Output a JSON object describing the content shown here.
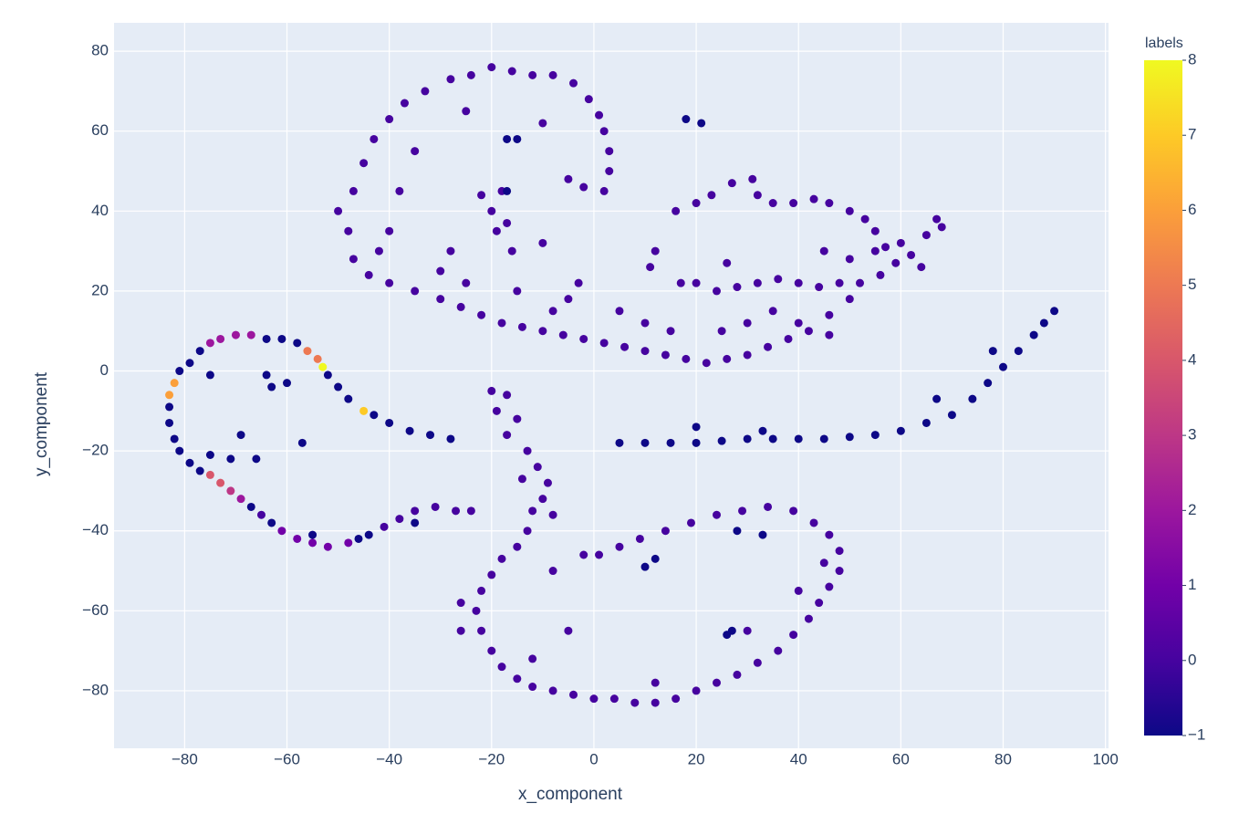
{
  "chart_data": {
    "type": "scatter",
    "xlabel": "x_component",
    "ylabel": "y_component",
    "colorbar_title": "labels",
    "xlim": [
      -93.8,
      100.6
    ],
    "ylim": [
      -94.4,
      87.1
    ],
    "grid": true,
    "xticks": [
      {
        "value": -80,
        "label": "−80"
      },
      {
        "value": -60,
        "label": "−60"
      },
      {
        "value": -40,
        "label": "−40"
      },
      {
        "value": -20,
        "label": "−20"
      },
      0,
      20,
      40,
      60,
      80,
      100
    ],
    "yticks": [
      {
        "value": -80,
        "label": "−80"
      },
      {
        "value": -60,
        "label": "−60"
      },
      {
        "value": -40,
        "label": "−40"
      },
      {
        "value": -20,
        "label": "−20"
      },
      0,
      20,
      40,
      60,
      80
    ],
    "clim": [
      -1,
      8
    ],
    "cticks": [
      {
        "value": -1,
        "label": "−1"
      },
      0,
      1,
      2,
      3,
      4,
      5,
      6,
      7,
      8
    ],
    "colorscale": [
      "#0d0887",
      "#46039f",
      "#7201a8",
      "#9c179e",
      "#bd3786",
      "#d8576b",
      "#ed7953",
      "#fb9f3a",
      "#fdca26",
      "#f0f921"
    ],
    "x": [
      -28,
      -32,
      -36,
      -40,
      -43,
      -45,
      -48,
      -50,
      -52,
      -53,
      -54,
      -56,
      -58,
      -61,
      -64,
      -67,
      -70,
      -73,
      -75,
      -77,
      -79,
      -81,
      -82,
      -83,
      -83,
      -83,
      -82,
      -81,
      -79,
      -77,
      -75,
      -73,
      -71,
      -69,
      -67,
      -65,
      -63,
      -61,
      -58,
      -55,
      -52,
      -48,
      -44,
      -41,
      -38,
      -35,
      -31,
      -27,
      -24,
      -55,
      -46,
      -35,
      -63,
      -64,
      -60,
      -75,
      -69,
      -71,
      -66,
      -57,
      -75,
      5,
      10,
      15,
      20,
      25,
      30,
      35,
      40,
      45,
      50,
      55,
      60,
      65,
      70,
      74,
      77,
      80,
      83,
      86,
      88,
      90,
      78,
      33,
      20,
      67,
      -20,
      -17,
      -19,
      -15,
      -17,
      -13,
      -11,
      -14,
      -9,
      -10,
      -12,
      -8,
      -13,
      -15,
      -18,
      -20,
      -22,
      -23,
      -22,
      -20,
      -18,
      -15,
      -12,
      -8,
      -4,
      0,
      4,
      8,
      12,
      16,
      20,
      24,
      28,
      32,
      36,
      39,
      42,
      44,
      46,
      48,
      48,
      46,
      43,
      39,
      34,
      29,
      24,
      19,
      14,
      9,
      5,
      1,
      -2,
      -8,
      -5,
      -26,
      -12,
      12,
      30,
      40,
      45,
      -26,
      12,
      10,
      27,
      28,
      33,
      26,
      -50,
      -48,
      -47,
      -45,
      -43,
      -40,
      -37,
      -33,
      -28,
      -24,
      -20,
      -16,
      -12,
      -8,
      -4,
      -1,
      1,
      2,
      3,
      3,
      2,
      -2,
      -5,
      -47,
      -44,
      -40,
      -35,
      -30,
      -26,
      -22,
      -18,
      -14,
      -10,
      -6,
      -2,
      2,
      6,
      10,
      14,
      18,
      22,
      26,
      30,
      34,
      38,
      42,
      46,
      50,
      -40,
      -38,
      -42,
      -30,
      -15,
      -5,
      5,
      10,
      -20,
      -22,
      -18,
      -17,
      -16,
      -19,
      -10,
      -28,
      -10,
      -35,
      -25,
      -8,
      -3,
      -25,
      -15,
      -17,
      18,
      21,
      -17,
      16,
      20,
      23,
      27,
      31,
      32,
      35,
      39,
      43,
      46,
      50,
      53,
      55,
      57,
      59,
      56,
      52,
      48,
      44,
      40,
      36,
      32,
      28,
      24,
      20,
      12,
      11,
      17,
      26,
      45,
      50,
      60,
      62,
      65,
      67,
      68,
      64,
      35,
      40,
      46,
      15,
      25,
      30,
      55
    ],
    "y": [
      -17,
      -16,
      -15,
      -13,
      -11,
      -10,
      -7,
      -4,
      -1,
      1,
      3,
      5,
      7,
      8,
      8,
      9,
      9,
      8,
      7,
      5,
      2,
      0,
      -3,
      -6,
      -9,
      -13,
      -17,
      -20,
      -23,
      -25,
      -26,
      -28,
      -30,
      -32,
      -34,
      -36,
      -38,
      -40,
      -42,
      -43,
      -44,
      -43,
      -41,
      -39,
      -37,
      -35,
      -34,
      -35,
      -35,
      -41,
      -42,
      -38,
      -4,
      -1,
      -3,
      -1,
      -16,
      -22,
      -22,
      -18,
      -21,
      -18,
      -18,
      -18,
      -18,
      -17.5,
      -17,
      -17,
      -17,
      -17,
      -16.5,
      -16,
      -15,
      -13,
      -11,
      -7,
      -3,
      1,
      5,
      9,
      12,
      15,
      5,
      -15,
      -14,
      -7,
      -5,
      -6,
      -10,
      -12,
      -16,
      -20,
      -24,
      -27,
      -28,
      -32,
      -35,
      -36,
      -40,
      -44,
      -47,
      -51,
      -55,
      -60,
      -65,
      -70,
      -74,
      -77,
      -79,
      -80,
      -81,
      -82,
      -82,
      -83,
      -83,
      -82,
      -80,
      -78,
      -76,
      -73,
      -70,
      -66,
      -62,
      -58,
      -54,
      -50,
      -45,
      -41,
      -38,
      -35,
      -34,
      -35,
      -36,
      -38,
      -40,
      -42,
      -44,
      -46,
      -46,
      -50,
      -65,
      -65,
      -72,
      -78,
      -65,
      -55,
      -48,
      -58,
      -47,
      -49,
      -65,
      -40,
      -41,
      -66,
      40,
      35,
      45,
      52,
      58,
      63,
      67,
      70,
      73,
      74,
      76,
      75,
      74,
      74,
      72,
      68,
      64,
      60,
      55,
      50,
      45,
      46,
      48,
      28,
      24,
      22,
      20,
      18,
      16,
      14,
      12,
      11,
      10,
      9,
      8,
      7,
      6,
      5,
      4,
      3,
      2,
      3,
      4,
      6,
      8,
      10,
      14,
      18,
      35,
      45,
      30,
      25,
      20,
      18,
      15,
      12,
      40,
      44,
      45,
      37,
      30,
      35,
      32,
      30,
      62,
      55,
      65,
      15,
      22,
      22,
      58,
      58,
      63,
      62,
      45,
      40,
      42,
      44,
      47,
      48,
      44,
      42,
      42,
      43,
      42,
      40,
      38,
      35,
      31,
      27,
      24,
      22,
      22,
      21,
      22,
      23,
      22,
      21,
      20,
      22,
      30,
      26,
      22,
      27,
      30,
      28,
      32,
      29,
      34,
      38,
      36,
      26,
      15,
      12,
      9,
      10,
      10,
      12,
      30
    ],
    "labels": [
      -1,
      -1,
      -1,
      -1,
      -1,
      7,
      -1,
      -1,
      -1,
      8,
      5,
      5,
      -1,
      -1,
      -1,
      2,
      2,
      2,
      2,
      -1,
      -1,
      -1,
      6,
      6,
      -1,
      -1,
      -1,
      -1,
      -1,
      -1,
      4,
      4,
      3,
      2,
      -1,
      0,
      -1,
      1,
      1,
      1,
      1,
      1,
      -1,
      0,
      0,
      0,
      0,
      0,
      0,
      -1,
      -1,
      -1,
      -1,
      -1,
      -1,
      -1,
      -1,
      -1,
      -1,
      -1,
      -1,
      -1,
      -1,
      -1,
      -1,
      -1,
      -1,
      -1,
      -1,
      -1,
      -1,
      -1,
      -1,
      -1,
      -1,
      -1,
      -1,
      -1,
      -1,
      -1,
      -1,
      -1,
      -1,
      -1,
      -1,
      -1,
      0,
      0,
      0,
      0,
      0,
      0,
      0,
      0,
      0,
      0,
      0,
      0,
      0,
      0,
      0,
      0,
      0,
      0,
      0,
      0,
      0,
      0,
      0,
      0,
      0,
      0,
      0,
      0,
      0,
      0,
      0,
      0,
      0,
      0,
      0,
      0,
      0,
      0,
      0,
      0,
      0,
      0,
      0,
      0,
      0,
      0,
      0,
      0,
      0,
      0,
      0,
      0,
      0,
      0,
      0,
      0,
      0,
      0,
      0,
      0,
      0,
      0,
      -1,
      -1,
      -1,
      -1,
      -1,
      -1,
      0,
      0,
      0,
      0,
      0,
      0,
      0,
      0,
      0,
      0,
      0,
      0,
      0,
      0,
      0,
      0,
      0,
      0,
      0,
      0,
      0,
      0,
      0,
      0,
      0,
      0,
      0,
      0,
      0,
      0,
      0,
      0,
      0,
      0,
      0,
      0,
      0,
      0,
      0,
      0,
      0,
      0,
      0,
      0,
      0,
      0,
      0,
      0,
      0,
      0,
      0,
      0,
      0,
      0,
      0,
      0,
      0,
      0,
      0,
      0,
      0,
      0,
      0,
      0,
      0,
      0,
      0,
      0,
      0,
      0,
      -1,
      -1,
      -1,
      -1,
      -1,
      0,
      0,
      0,
      0,
      0,
      0,
      0,
      0,
      0,
      0,
      0,
      0,
      0,
      0,
      0,
      0,
      0,
      0,
      0,
      0,
      0,
      0,
      0,
      0,
      0,
      0,
      0,
      0,
      0,
      0,
      0,
      0,
      0,
      0,
      0,
      0,
      0,
      0,
      0,
      0,
      0,
      0,
      0,
      0
    ]
  }
}
